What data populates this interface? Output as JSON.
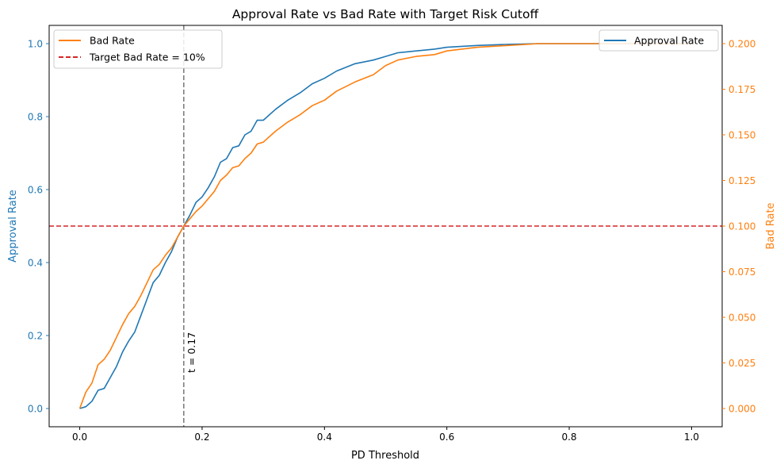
{
  "chart_data": {
    "type": "line",
    "title": "Approval Rate vs Bad Rate with Target Risk Cutoff",
    "xlabel": "PD Threshold",
    "ylabel_left": "Approval Rate",
    "ylabel_right": "Bad Rate",
    "xlim": [
      -0.05,
      1.05
    ],
    "ylim_left": [
      -0.05,
      1.05
    ],
    "ylim_right": [
      -0.01,
      0.21
    ],
    "x_ticks": [
      "0.0",
      "0.2",
      "0.4",
      "0.6",
      "0.8",
      "1.0"
    ],
    "y_left_ticks": [
      "0.0",
      "0.2",
      "0.4",
      "0.6",
      "0.8",
      "1.0"
    ],
    "y_right_ticks": [
      "0.000",
      "0.025",
      "0.050",
      "0.075",
      "0.100",
      "0.125",
      "0.150",
      "0.175",
      "0.200"
    ],
    "grid": false,
    "colors": {
      "approval": "#1f77b4",
      "bad": "#ff7f0e",
      "target": "#d62728",
      "cutoff": "#7f7f7f"
    },
    "series": [
      {
        "name": "Approval Rate",
        "axis": "left",
        "x": [
          0.0,
          0.01,
          0.02,
          0.03,
          0.04,
          0.05,
          0.06,
          0.07,
          0.08,
          0.09,
          0.1,
          0.11,
          0.12,
          0.13,
          0.14,
          0.15,
          0.16,
          0.17,
          0.18,
          0.19,
          0.2,
          0.21,
          0.22,
          0.23,
          0.24,
          0.25,
          0.26,
          0.27,
          0.28,
          0.29,
          0.3,
          0.32,
          0.34,
          0.36,
          0.38,
          0.4,
          0.42,
          0.45,
          0.48,
          0.5,
          0.52,
          0.55,
          0.58,
          0.6,
          0.65,
          0.7,
          0.75,
          0.8,
          0.85,
          0.9,
          1.0
        ],
        "values": [
          0.0,
          0.005,
          0.02,
          0.05,
          0.055,
          0.085,
          0.115,
          0.155,
          0.185,
          0.21,
          0.255,
          0.3,
          0.345,
          0.365,
          0.4,
          0.43,
          0.47,
          0.5,
          0.53,
          0.565,
          0.58,
          0.605,
          0.635,
          0.675,
          0.685,
          0.715,
          0.72,
          0.75,
          0.76,
          0.79,
          0.79,
          0.82,
          0.845,
          0.865,
          0.89,
          0.905,
          0.925,
          0.945,
          0.955,
          0.965,
          0.975,
          0.98,
          0.985,
          0.99,
          0.995,
          0.998,
          1.0,
          1.0,
          1.0,
          1.0,
          1.0
        ]
      },
      {
        "name": "Bad Rate",
        "axis": "right",
        "x": [
          0.0,
          0.01,
          0.02,
          0.03,
          0.04,
          0.05,
          0.06,
          0.07,
          0.08,
          0.09,
          0.1,
          0.11,
          0.12,
          0.13,
          0.14,
          0.15,
          0.16,
          0.17,
          0.18,
          0.19,
          0.2,
          0.21,
          0.22,
          0.23,
          0.24,
          0.25,
          0.26,
          0.27,
          0.28,
          0.29,
          0.3,
          0.32,
          0.34,
          0.36,
          0.38,
          0.4,
          0.42,
          0.45,
          0.48,
          0.5,
          0.52,
          0.55,
          0.58,
          0.6,
          0.65,
          0.7,
          0.75,
          0.8,
          0.85,
          0.9,
          1.0
        ],
        "values": [
          0.0,
          0.009,
          0.014,
          0.024,
          0.027,
          0.032,
          0.039,
          0.046,
          0.052,
          0.056,
          0.062,
          0.069,
          0.076,
          0.079,
          0.084,
          0.088,
          0.094,
          0.1,
          0.104,
          0.108,
          0.111,
          0.115,
          0.119,
          0.125,
          0.128,
          0.132,
          0.133,
          0.137,
          0.14,
          0.145,
          0.146,
          0.152,
          0.157,
          0.161,
          0.166,
          0.169,
          0.174,
          0.179,
          0.183,
          0.188,
          0.191,
          0.193,
          0.194,
          0.196,
          0.198,
          0.199,
          0.2,
          0.2,
          0.2,
          0.2,
          0.2
        ]
      }
    ],
    "target_line": {
      "name": "Target Bad Rate = 10%",
      "value": 0.1,
      "axis": "right"
    },
    "cutoff_line": {
      "x": 0.17,
      "label": "t = 0.17"
    },
    "legend_left": [
      "Bad Rate",
      "Target Bad Rate = 10%"
    ],
    "legend_right": [
      "Approval Rate"
    ],
    "legend_placement": [
      "upper-left",
      "upper-right"
    ]
  }
}
